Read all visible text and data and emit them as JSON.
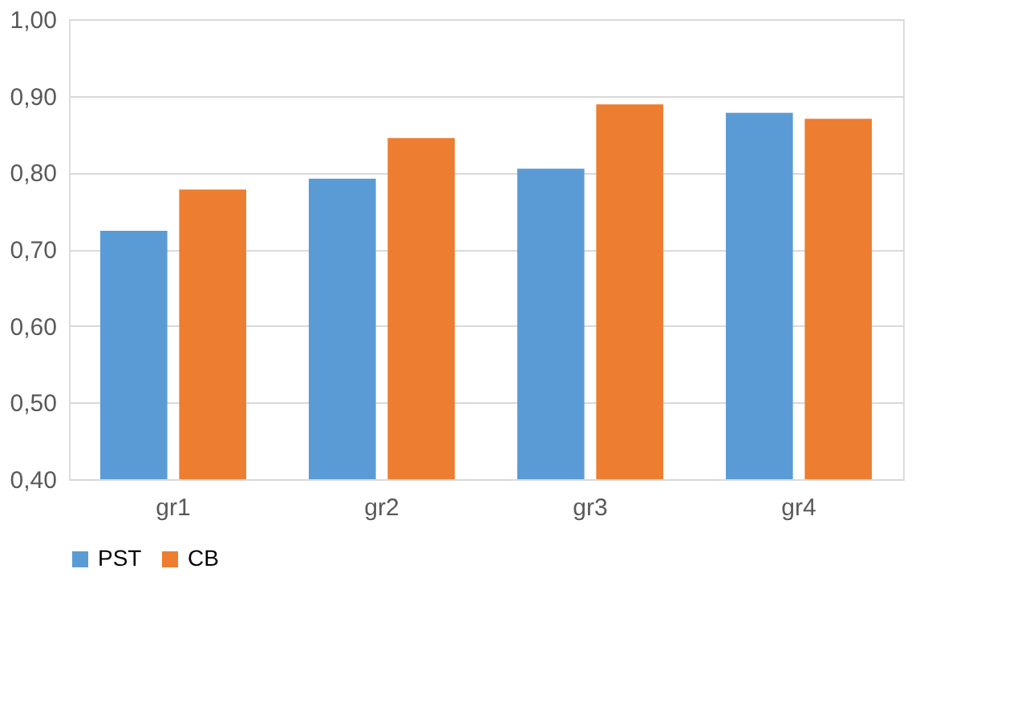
{
  "chart_data": {
    "type": "bar",
    "categories": [
      "gr1",
      "gr2",
      "gr3",
      "gr4"
    ],
    "series": [
      {
        "name": "PST",
        "color": "#5b9bd5",
        "values": [
          0.724,
          0.792,
          0.805,
          0.878
        ]
      },
      {
        "name": "CB",
        "color": "#ed7d31",
        "values": [
          0.778,
          0.845,
          0.889,
          0.87
        ]
      }
    ],
    "ylim": [
      0.4,
      1.0
    ],
    "yticks": [
      {
        "value": 0.4,
        "label": "0,40"
      },
      {
        "value": 0.5,
        "label": "0,50"
      },
      {
        "value": 0.6,
        "label": "0,60"
      },
      {
        "value": 0.7,
        "label": "0,70"
      },
      {
        "value": 0.8,
        "label": "0,80"
      },
      {
        "value": 0.9,
        "label": "0,90"
      },
      {
        "value": 1.0,
        "label": "1,00"
      }
    ],
    "grid": "y",
    "legend": "bottom"
  }
}
